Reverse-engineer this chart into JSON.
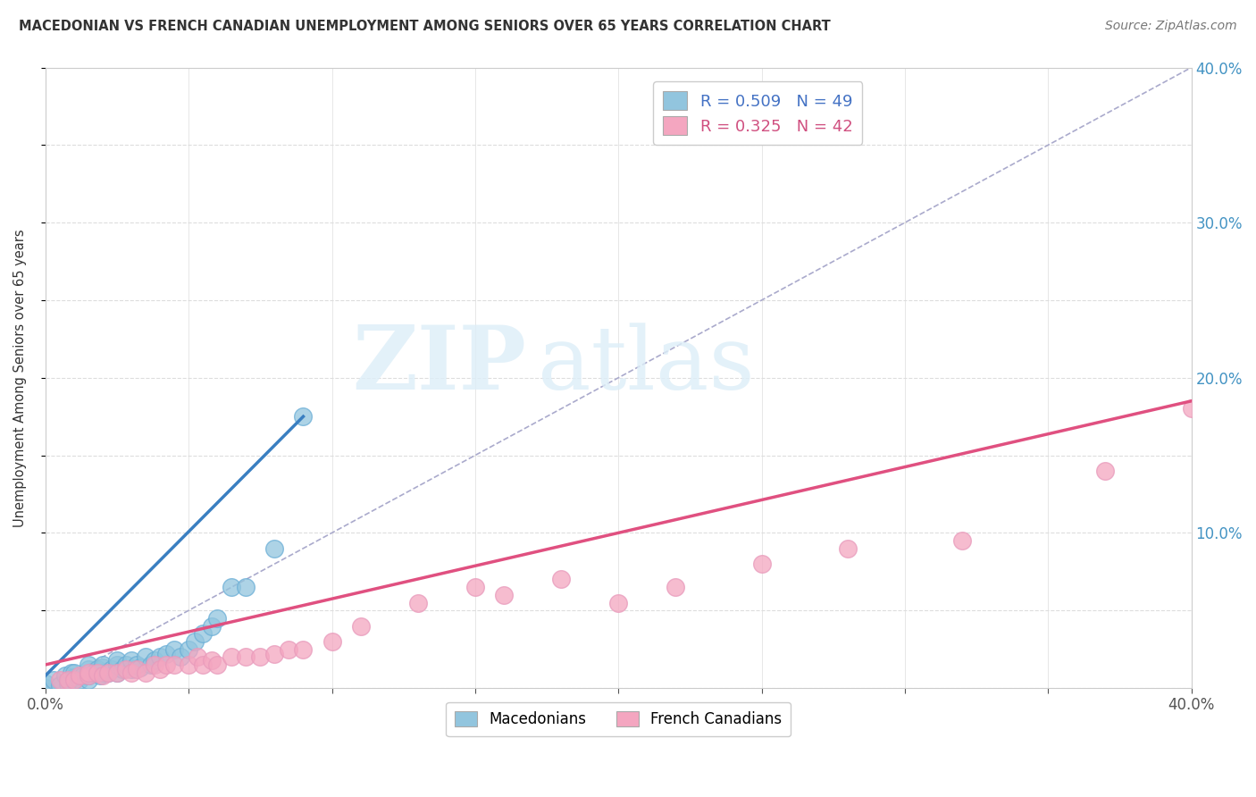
{
  "title": "MACEDONIAN VS FRENCH CANADIAN UNEMPLOYMENT AMONG SENIORS OVER 65 YEARS CORRELATION CHART",
  "source": "Source: ZipAtlas.com",
  "ylabel": "Unemployment Among Seniors over 65 years",
  "xlim": [
    0.0,
    0.4
  ],
  "ylim": [
    0.0,
    0.4
  ],
  "xticks": [
    0.0,
    0.05,
    0.1,
    0.15,
    0.2,
    0.25,
    0.3,
    0.35,
    0.4
  ],
  "yticks": [
    0.0,
    0.05,
    0.1,
    0.15,
    0.2,
    0.25,
    0.3,
    0.35,
    0.4
  ],
  "macedonian_R": 0.509,
  "macedonian_N": 49,
  "french_canadian_R": 0.325,
  "french_canadian_N": 42,
  "macedonian_color": "#92C5DE",
  "french_canadian_color": "#F4A6C0",
  "macedonian_line_color": "#3A7FC1",
  "french_canadian_line_color": "#E05080",
  "diagonal_color": "#AAAACC",
  "legend_color_mac": "#92C5DE",
  "legend_color_fc": "#F4A6C0",
  "watermark_zip": "ZIP",
  "watermark_atlas": "atlas",
  "macedonian_x": [
    0.0,
    0.0,
    0.003,
    0.005,
    0.007,
    0.008,
    0.009,
    0.01,
    0.01,
    0.01,
    0.012,
    0.013,
    0.015,
    0.015,
    0.015,
    0.015,
    0.017,
    0.018,
    0.019,
    0.02,
    0.02,
    0.02,
    0.022,
    0.023,
    0.025,
    0.025,
    0.025,
    0.027,
    0.028,
    0.03,
    0.03,
    0.032,
    0.033,
    0.035,
    0.037,
    0.038,
    0.04,
    0.042,
    0.045,
    0.047,
    0.05,
    0.052,
    0.055,
    0.058,
    0.06,
    0.065,
    0.07,
    0.08,
    0.09
  ],
  "macedonian_y": [
    0.0,
    0.003,
    0.005,
    0.002,
    0.008,
    0.003,
    0.01,
    0.005,
    0.007,
    0.01,
    0.005,
    0.008,
    0.005,
    0.008,
    0.012,
    0.015,
    0.01,
    0.012,
    0.008,
    0.01,
    0.013,
    0.015,
    0.01,
    0.012,
    0.01,
    0.015,
    0.018,
    0.012,
    0.015,
    0.012,
    0.018,
    0.015,
    0.013,
    0.02,
    0.015,
    0.018,
    0.02,
    0.022,
    0.025,
    0.02,
    0.025,
    0.03,
    0.035,
    0.04,
    0.045,
    0.065,
    0.065,
    0.09,
    0.175
  ],
  "french_canadian_x": [
    0.005,
    0.008,
    0.01,
    0.012,
    0.015,
    0.015,
    0.018,
    0.02,
    0.022,
    0.025,
    0.028,
    0.03,
    0.032,
    0.035,
    0.038,
    0.04,
    0.042,
    0.045,
    0.05,
    0.053,
    0.055,
    0.058,
    0.06,
    0.065,
    0.07,
    0.075,
    0.08,
    0.085,
    0.09,
    0.1,
    0.11,
    0.13,
    0.15,
    0.16,
    0.18,
    0.2,
    0.22,
    0.25,
    0.28,
    0.32,
    0.37,
    0.4
  ],
  "french_canadian_y": [
    0.005,
    0.005,
    0.005,
    0.008,
    0.008,
    0.01,
    0.01,
    0.008,
    0.01,
    0.01,
    0.012,
    0.01,
    0.012,
    0.01,
    0.015,
    0.012,
    0.015,
    0.015,
    0.015,
    0.02,
    0.015,
    0.018,
    0.015,
    0.02,
    0.02,
    0.02,
    0.022,
    0.025,
    0.025,
    0.03,
    0.04,
    0.055,
    0.065,
    0.06,
    0.07,
    0.055,
    0.065,
    0.08,
    0.09,
    0.095,
    0.14,
    0.18
  ],
  "mac_line_x0": 0.0,
  "mac_line_y0": 0.008,
  "mac_line_x1": 0.09,
  "mac_line_y1": 0.175,
  "fc_line_x0": 0.0,
  "fc_line_y0": 0.015,
  "fc_line_x1": 0.4,
  "fc_line_y1": 0.185
}
